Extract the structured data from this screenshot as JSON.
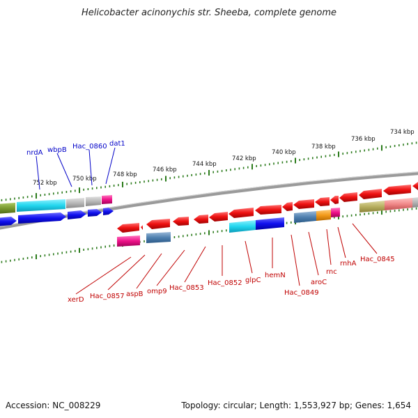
{
  "title": "Helicobacter acinonychis str. Sheeba, complete genome",
  "footer": {
    "accession": "Accession: NC_008229",
    "summary": "Topology: circular; Length: 1,553,927 bp; Genes: 1,654"
  },
  "scale_ticks": [
    "752 kbp",
    "750 kbp",
    "748 kbp",
    "746 kbp",
    "744 kbp",
    "742 kbp",
    "740 kbp",
    "738 kbp",
    "736 kbp",
    "734 kbp"
  ],
  "upper_genes": [
    "nrdA",
    "wbpB",
    "Hac_0860",
    "dat1"
  ],
  "lower_genes": [
    "xerD",
    "Hac_0857",
    "aspB",
    "omp9",
    "Hac_0853",
    "Hac_0852",
    "glpC",
    "hemN",
    "Hac_0849",
    "aroC",
    "rnc",
    "rnhA",
    "Hac_0845"
  ],
  "colors": {
    "blue_label": "#0000c8",
    "red_label": "#c00000",
    "tick_green": "#2a7a1a",
    "backbone": "#8a8a8a",
    "gene_red": "#ee1111",
    "gene_blue": "#1010ee",
    "gene_cyan": "#22d6ee",
    "gene_magenta": "#ee1188",
    "gene_steelblue": "#4f80b0",
    "gene_orange": "#f29a1a",
    "gene_olive": "#b8b060",
    "gene_green": "#7a9a30",
    "gene_gray": "#b8b8b8",
    "gene_pink": "#f08888"
  }
}
